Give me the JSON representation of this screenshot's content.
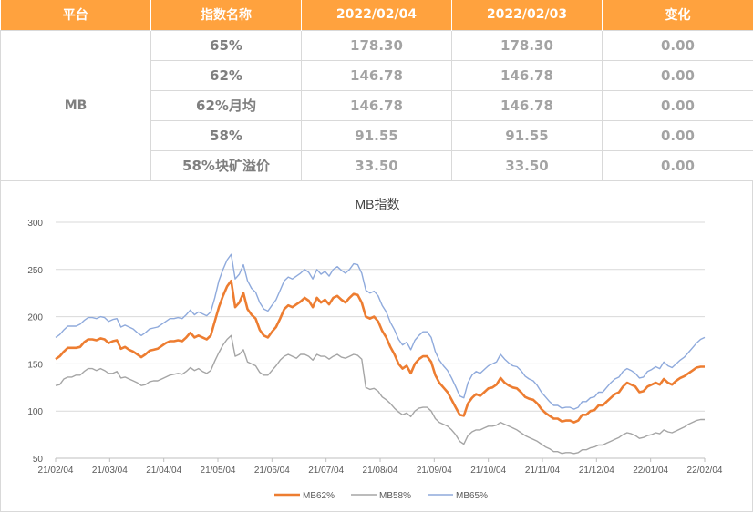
{
  "table": {
    "headers": [
      "平台",
      "指数名称",
      "2022/02/04",
      "2022/02/03",
      "变化"
    ],
    "platform": "MB",
    "rows": [
      {
        "name": "65%",
        "v1": "178.30",
        "v2": "178.30",
        "chg": "0.00"
      },
      {
        "name": "62%",
        "v1": "146.78",
        "v2": "146.78",
        "chg": "0.00"
      },
      {
        "name": "62%月均",
        "v1": "146.78",
        "v2": "146.78",
        "chg": "0.00"
      },
      {
        "name": "58%",
        "v1": "91.55",
        "v2": "91.55",
        "chg": "0.00"
      },
      {
        "name": "58%块矿溢价",
        "v1": "33.50",
        "v2": "33.50",
        "chg": "0.00"
      }
    ]
  },
  "chart_data": {
    "type": "line",
    "title": "MB指数",
    "x_ticks": [
      "21/02/04",
      "21/03/04",
      "21/04/04",
      "21/05/04",
      "21/06/04",
      "21/07/04",
      "21/08/04",
      "21/09/04",
      "21/10/04",
      "21/11/04",
      "21/12/04",
      "22/01/04",
      "22/02/04"
    ],
    "ylim": [
      50,
      300
    ],
    "y_ticks": [
      "50",
      "100",
      "150",
      "200",
      "250",
      "300"
    ],
    "grid": true,
    "legend_position": "bottom",
    "series": [
      {
        "name": "MB62%",
        "color": "#ed7d31",
        "values": [
          155,
          158,
          163,
          167,
          167,
          167,
          168,
          173,
          176,
          176,
          175,
          177,
          176,
          172,
          174,
          175,
          166,
          168,
          165,
          163,
          160,
          157,
          160,
          164,
          165,
          166,
          169,
          172,
          174,
          174,
          175,
          174,
          178,
          183,
          178,
          180,
          178,
          176,
          180,
          195,
          210,
          222,
          232,
          238,
          210,
          215,
          225,
          208,
          202,
          198,
          186,
          180,
          178,
          184,
          189,
          198,
          208,
          212,
          210,
          213,
          216,
          220,
          217,
          210,
          220,
          215,
          218,
          213,
          220,
          222,
          218,
          215,
          220,
          224,
          223,
          215,
          200,
          198,
          200,
          195,
          185,
          178,
          168,
          160,
          150,
          145,
          148,
          140,
          150,
          155,
          158,
          158,
          152,
          138,
          130,
          125,
          120,
          112,
          104,
          96,
          95,
          108,
          114,
          118,
          116,
          120,
          124,
          125,
          128,
          135,
          130,
          127,
          125,
          124,
          120,
          115,
          113,
          112,
          108,
          102,
          98,
          95,
          92,
          92,
          89,
          90,
          90,
          88,
          90,
          96,
          96,
          100,
          101,
          106,
          106,
          110,
          114,
          118,
          120,
          126,
          130,
          128,
          126,
          120,
          121,
          126,
          128,
          130,
          128,
          134,
          130,
          128,
          132,
          135,
          137,
          140,
          143,
          146,
          147,
          147
        ]
      },
      {
        "name": "MB58%",
        "color": "#a5a5a5",
        "values": [
          127,
          128,
          134,
          136,
          136,
          138,
          138,
          142,
          145,
          145,
          143,
          145,
          143,
          140,
          140,
          142,
          135,
          136,
          134,
          132,
          130,
          127,
          128,
          131,
          132,
          132,
          134,
          136,
          138,
          139,
          140,
          139,
          142,
          146,
          143,
          145,
          142,
          140,
          143,
          153,
          162,
          170,
          176,
          180,
          158,
          160,
          165,
          152,
          150,
          148,
          141,
          138,
          138,
          143,
          148,
          154,
          158,
          160,
          158,
          156,
          160,
          160,
          158,
          154,
          160,
          158,
          158,
          155,
          158,
          160,
          157,
          156,
          158,
          160,
          159,
          155,
          125,
          123,
          124,
          121,
          115,
          112,
          108,
          103,
          99,
          96,
          98,
          94,
          100,
          103,
          104,
          104,
          100,
          92,
          88,
          86,
          84,
          80,
          75,
          68,
          65,
          74,
          78,
          80,
          80,
          82,
          84,
          84,
          85,
          88,
          86,
          84,
          82,
          80,
          77,
          74,
          72,
          70,
          68,
          65,
          62,
          60,
          57,
          57,
          55,
          56,
          56,
          55,
          56,
          59,
          59,
          61,
          62,
          64,
          64,
          66,
          68,
          70,
          72,
          75,
          77,
          76,
          74,
          71,
          72,
          74,
          75,
          77,
          76,
          80,
          78,
          77,
          79,
          81,
          83,
          86,
          88,
          90,
          91,
          91
        ]
      },
      {
        "name": "MB65%",
        "color": "#8faadc",
        "values": [
          178,
          181,
          186,
          190,
          190,
          190,
          192,
          196,
          199,
          199,
          198,
          200,
          199,
          195,
          197,
          198,
          189,
          191,
          189,
          187,
          183,
          180,
          183,
          187,
          188,
          189,
          192,
          195,
          198,
          198,
          199,
          198,
          202,
          207,
          202,
          205,
          203,
          201,
          205,
          220,
          238,
          250,
          260,
          266,
          240,
          245,
          255,
          238,
          230,
          226,
          215,
          208,
          206,
          212,
          218,
          228,
          238,
          242,
          240,
          243,
          246,
          250,
          247,
          240,
          250,
          245,
          248,
          243,
          250,
          253,
          249,
          246,
          250,
          256,
          255,
          246,
          228,
          225,
          227,
          222,
          212,
          205,
          194,
          186,
          176,
          170,
          173,
          165,
          175,
          180,
          184,
          184,
          178,
          163,
          154,
          148,
          143,
          135,
          126,
          116,
          114,
          130,
          138,
          142,
          140,
          144,
          148,
          150,
          152,
          160,
          155,
          151,
          148,
          147,
          143,
          137,
          134,
          132,
          127,
          120,
          115,
          110,
          106,
          106,
          103,
          104,
          104,
          102,
          104,
          110,
          110,
          114,
          115,
          120,
          120,
          125,
          130,
          134,
          136,
          142,
          145,
          143,
          140,
          135,
          136,
          142,
          144,
          147,
          145,
          152,
          148,
          146,
          150,
          154,
          157,
          162,
          167,
          172,
          176,
          178
        ]
      }
    ]
  }
}
